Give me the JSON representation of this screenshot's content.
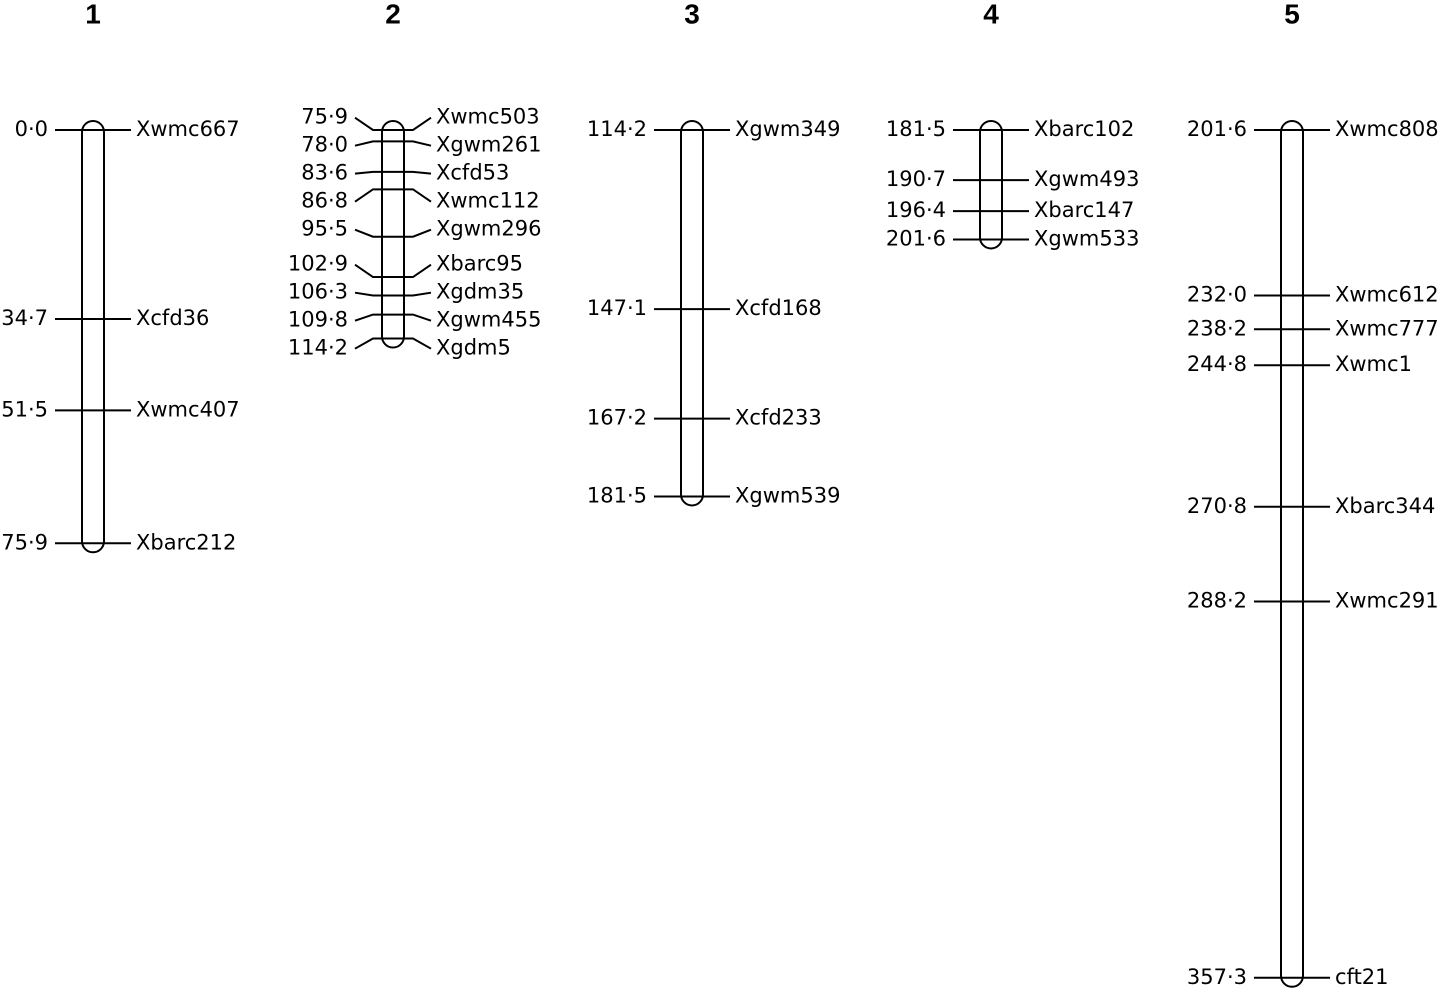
{
  "groups": [
    {
      "title": "1",
      "markers": [
        {
          "position": {
            "value": 0.0,
            "label": "0·0"
          },
          "name": "Xwmc667"
        },
        {
          "position": {
            "value": 34.7,
            "label": "34·7"
          },
          "name": "Xcfd36"
        },
        {
          "position": {
            "value": 51.5,
            "label": "51·5"
          },
          "name": "Xwmc407"
        },
        {
          "position": {
            "value": 75.9,
            "label": "75·9"
          },
          "name": "Xbarc212"
        }
      ]
    },
    {
      "title": "2",
      "markers": [
        {
          "position": {
            "value": 75.9,
            "label": "75·9"
          },
          "name": "Xwmc503"
        },
        {
          "position": {
            "value": 78.0,
            "label": "78·0"
          },
          "name": "Xgwm261"
        },
        {
          "position": {
            "value": 83.6,
            "label": "83·6"
          },
          "name": "Xcfd53"
        },
        {
          "position": {
            "value": 86.8,
            "label": "86·8"
          },
          "name": "Xwmc112"
        },
        {
          "position": {
            "value": 95.5,
            "label": "95·5"
          },
          "name": "Xgwm296"
        },
        {
          "position": {
            "value": 102.9,
            "label": "102·9"
          },
          "name": "Xbarc95"
        },
        {
          "position": {
            "value": 106.3,
            "label": "106·3"
          },
          "name": "Xgdm35"
        },
        {
          "position": {
            "value": 109.8,
            "label": "109·8"
          },
          "name": "Xgwm455"
        },
        {
          "position": {
            "value": 114.2,
            "label": "114·2"
          },
          "name": "Xgdm5"
        }
      ]
    },
    {
      "title": "3",
      "markers": [
        {
          "position": {
            "value": 114.2,
            "label": "114·2"
          },
          "name": "Xgwm349"
        },
        {
          "position": {
            "value": 147.1,
            "label": "147·1"
          },
          "name": "Xcfd168"
        },
        {
          "position": {
            "value": 167.2,
            "label": "167·2"
          },
          "name": "Xcfd233"
        },
        {
          "position": {
            "value": 181.5,
            "label": "181·5"
          },
          "name": "Xgwm539"
        }
      ]
    },
    {
      "title": "4",
      "markers": [
        {
          "position": {
            "value": 181.5,
            "label": "181·5"
          },
          "name": "Xbarc102"
        },
        {
          "position": {
            "value": 190.7,
            "label": "190·7"
          },
          "name": "Xgwm493"
        },
        {
          "position": {
            "value": 196.4,
            "label": "196·4"
          },
          "name": "Xbarc147"
        },
        {
          "position": {
            "value": 201.6,
            "label": "201·6"
          },
          "name": "Xgwm533"
        }
      ]
    },
    {
      "title": "5",
      "markers": [
        {
          "position": {
            "value": 201.6,
            "label": "201·6"
          },
          "name": "Xwmc808"
        },
        {
          "position": {
            "value": 232.0,
            "label": "232·0"
          },
          "name": "Xwmc612"
        },
        {
          "position": {
            "value": 238.2,
            "label": "238·2"
          },
          "name": "Xwmc777"
        },
        {
          "position": {
            "value": 244.8,
            "label": "244·8"
          },
          "name": "Xwmc1"
        },
        {
          "position": {
            "value": 270.8,
            "label": "270·8"
          },
          "name": "Xbarc344"
        },
        {
          "position": {
            "value": 288.2,
            "label": "288·2"
          },
          "name": "Xwmc291"
        },
        {
          "position": {
            "value": 357.3,
            "label": "357·3"
          },
          "name": "cft21"
        }
      ]
    }
  ]
}
